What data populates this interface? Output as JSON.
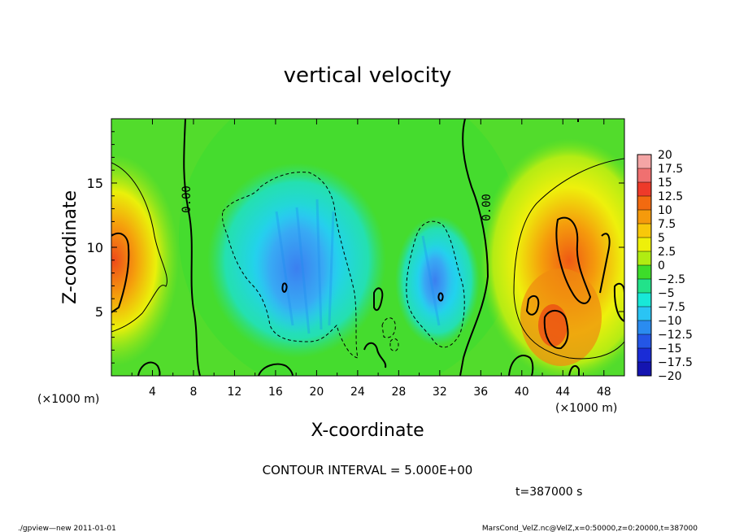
{
  "chart_data": {
    "type": "heatmap",
    "title": "vertical velocity",
    "xlabel": "X-coordinate",
    "ylabel": "Z-coordinate",
    "x_unit_left": "(×1000 m)",
    "x_unit_right": "(×1000 m)",
    "xlim": [
      0,
      50
    ],
    "ylim": [
      0,
      20
    ],
    "x_ticks": [
      4,
      8,
      12,
      16,
      20,
      24,
      28,
      32,
      36,
      40,
      44,
      48
    ],
    "x_tick_labels": [
      "4",
      "8",
      "12",
      "16",
      "20",
      "24",
      "28",
      "32",
      "36",
      "40",
      "44",
      "48"
    ],
    "y_ticks": [
      5,
      10,
      15
    ],
    "y_tick_labels": [
      "5",
      "10",
      "15"
    ],
    "colorbar": {
      "levels": [
        20,
        17.5,
        15,
        12.5,
        10,
        7.5,
        5,
        2.5,
        0,
        -2.5,
        -5,
        -7.5,
        -10,
        -12.5,
        -15,
        -17.5,
        -20
      ],
      "labels": [
        "20",
        "17.5",
        "15",
        "12.5",
        "10",
        "7.5",
        "5",
        "2.5",
        "0",
        "−2.5",
        "−5",
        "−7.5",
        "−10",
        "−12.5",
        "−15",
        "−17.5",
        "−20"
      ],
      "colors": [
        "#f4a5a5",
        "#f07070",
        "#ee3a2a",
        "#f26a10",
        "#f59a0c",
        "#f8c80a",
        "#eef00a",
        "#b0ec12",
        "#3ddc2a",
        "#22e28a",
        "#18e8d8",
        "#2ac4f4",
        "#2a8cf0",
        "#2456e6",
        "#1a2cd6",
        "#1414b0",
        "#7a1cc4"
      ]
    },
    "contour_labels": [
      "0.00",
      "0.00"
    ],
    "contour_interval_text": "CONTOUR INTERVAL = 5.000E+00",
    "time_text": "t=387000 s"
  },
  "footer": {
    "left": "./gpview—new   2011-01-01",
    "right": "MarsCond_VelZ.nc@VelZ,x=0:50000,z=0:20000,t=387000"
  }
}
